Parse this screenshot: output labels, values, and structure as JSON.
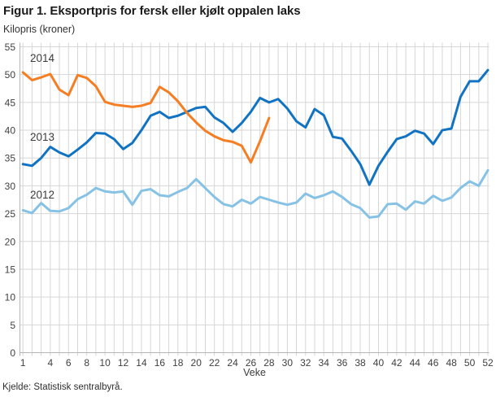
{
  "figure": {
    "title": "Figur 1. Eksportpris for fersk eller kjølt oppalen laks",
    "unit_label": "Kilopris (kroner)",
    "x_axis_title": "Veke",
    "source": "Kjelde: Statistisk sentralbyrå."
  },
  "chart_data": {
    "type": "line",
    "title": "Figur 1. Eksportpris for fersk eller kjølt oppalen laks",
    "ylabel": "Kilopris (kroner)",
    "xlabel": "Veke",
    "ylim": [
      0,
      55
    ],
    "yticks": [
      0,
      5,
      10,
      15,
      20,
      25,
      30,
      35,
      40,
      45,
      50,
      55
    ],
    "xticks": [
      1,
      4,
      6,
      8,
      10,
      12,
      14,
      16,
      18,
      20,
      22,
      24,
      26,
      28,
      30,
      32,
      34,
      36,
      38,
      40,
      42,
      44,
      46,
      48,
      50,
      52
    ],
    "weeks_domain": [
      1,
      52
    ],
    "grid": true,
    "legend_position": "inline-labels-left",
    "series": [
      {
        "name": "2012",
        "color": "#85c2e5",
        "start_week": 1,
        "values": [
          25.6,
          25.1,
          26.9,
          25.5,
          25.4,
          26.0,
          27.6,
          28.4,
          29.6,
          29.0,
          28.8,
          29.0,
          26.6,
          29.1,
          29.4,
          28.3,
          28.1,
          28.9,
          29.6,
          31.2,
          29.6,
          28.0,
          26.7,
          26.3,
          27.5,
          26.8,
          28.0,
          27.5,
          27.0,
          26.6,
          27.0,
          28.6,
          27.8,
          28.3,
          29.0,
          28.0,
          26.7,
          26.0,
          24.3,
          24.5,
          26.7,
          26.8,
          25.7,
          27.2,
          26.8,
          28.2,
          27.3,
          27.9,
          29.6,
          30.8,
          30.0,
          32.8
        ]
      },
      {
        "name": "2013",
        "color": "#1173c2",
        "start_week": 1,
        "values": [
          33.9,
          33.6,
          35.0,
          37.0,
          36.0,
          35.3,
          36.5,
          37.8,
          39.5,
          39.4,
          38.4,
          36.6,
          37.7,
          40.0,
          42.6,
          43.3,
          42.2,
          42.6,
          43.3,
          44.0,
          44.2,
          42.3,
          41.3,
          39.7,
          41.3,
          43.3,
          45.8,
          45.0,
          45.6,
          43.9,
          41.6,
          40.5,
          43.8,
          42.7,
          38.8,
          38.5,
          36.3,
          33.9,
          30.2,
          33.6,
          36.1,
          38.4,
          38.9,
          39.9,
          39.4,
          37.5,
          40.0,
          40.3,
          46.0,
          48.8,
          48.8,
          50.8
        ]
      },
      {
        "name": "2014",
        "color": "#f57d22",
        "start_week": 1,
        "values": [
          50.4,
          49.0,
          49.5,
          50.1,
          47.3,
          46.3,
          49.9,
          49.4,
          47.9,
          45.1,
          44.6,
          44.4,
          44.2,
          44.4,
          44.9,
          47.8,
          46.8,
          45.2,
          43.1,
          41.4,
          39.9,
          38.9,
          38.2,
          37.9,
          37.2,
          34.2,
          38.0,
          42.2
        ]
      }
    ]
  },
  "colors": {
    "grid": "#d6d6d6",
    "axis": "#b5b5b5",
    "tick_text": "#404040",
    "title_text": "#1a1a1a",
    "background": "#ffffff"
  }
}
